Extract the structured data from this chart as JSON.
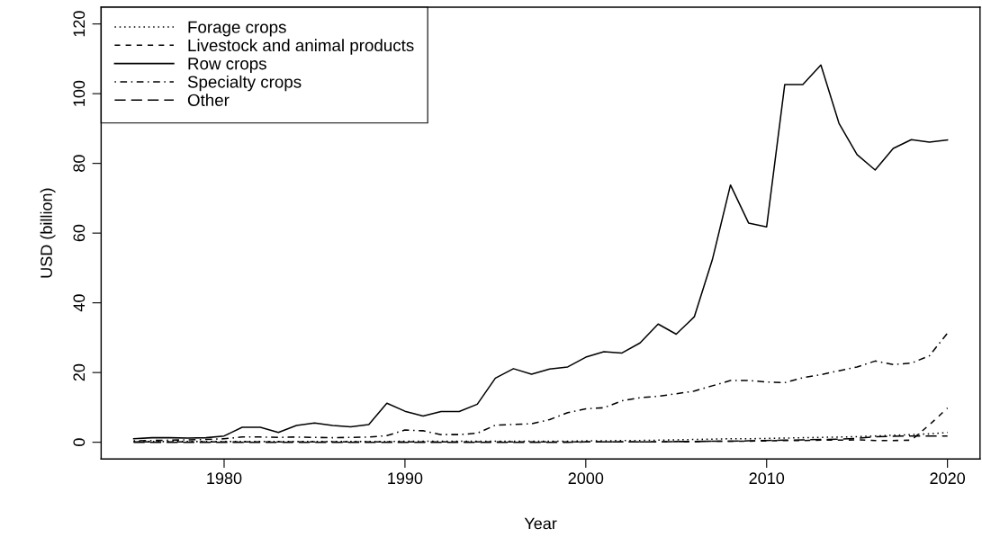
{
  "chart_data": {
    "type": "line",
    "xlabel": "Year",
    "ylabel": "USD (billion)",
    "x": [
      1975,
      1976,
      1977,
      1978,
      1979,
      1980,
      1981,
      1982,
      1983,
      1984,
      1985,
      1986,
      1987,
      1988,
      1989,
      1990,
      1991,
      1992,
      1993,
      1994,
      1995,
      1996,
      1997,
      1998,
      1999,
      2000,
      2001,
      2002,
      2003,
      2004,
      2005,
      2006,
      2007,
      2008,
      2009,
      2010,
      2011,
      2012,
      2013,
      2014,
      2015,
      2016,
      2017,
      2018,
      2019,
      2020
    ],
    "series": [
      {
        "name": "Forage crops",
        "color": "#000000",
        "line_style": "dotted",
        "values": [
          0.2,
          0.2,
          0.2,
          0.2,
          0.2,
          0.2,
          0.2,
          0.2,
          0.2,
          0.2,
          0.2,
          0.2,
          0.2,
          0.2,
          0.2,
          0.3,
          0.3,
          0.3,
          0.3,
          0.3,
          0.3,
          0.3,
          0.3,
          0.3,
          0.3,
          0.4,
          0.4,
          0.5,
          0.5,
          0.6,
          0.7,
          0.8,
          0.9,
          1.0,
          1.0,
          1.1,
          1.2,
          1.3,
          1.4,
          1.5,
          1.6,
          1.8,
          2.0,
          2.2,
          2.4,
          2.8
        ]
      },
      {
        "name": "Livestock and animal products",
        "color": "#000000",
        "line_style": "dashed",
        "values": [
          0.1,
          0.1,
          0.1,
          0.1,
          0.1,
          0.1,
          0.1,
          0.1,
          0.1,
          0.1,
          0.1,
          0.1,
          0.1,
          0.1,
          0.1,
          0.1,
          0.1,
          0.1,
          0.1,
          0.1,
          0.1,
          0.1,
          0.1,
          0.1,
          0.1,
          0.1,
          0.1,
          0.1,
          0.1,
          0.1,
          0.2,
          0.2,
          0.3,
          0.3,
          0.3,
          0.4,
          0.5,
          0.5,
          0.6,
          0.6,
          0.7,
          0.5,
          0.5,
          0.6,
          5.0,
          9.8
        ]
      },
      {
        "name": "Row crops",
        "color": "#000000",
        "line_style": "solid",
        "values": [
          1.0,
          1.3,
          1.3,
          1.2,
          1.3,
          1.8,
          4.3,
          4.3,
          2.8,
          4.8,
          5.5,
          4.8,
          4.4,
          5.1,
          11.2,
          8.9,
          7.5,
          8.8,
          8.8,
          10.9,
          18.4,
          21.1,
          19.5,
          21.0,
          21.6,
          24.4,
          26.0,
          25.6,
          28.5,
          33.9,
          31.0,
          36.0,
          52.4,
          73.8,
          62.9,
          61.8,
          102.6,
          102.6,
          108.2,
          91.5,
          82.5,
          78.1,
          84.3,
          86.8,
          86.1,
          86.7
        ]
      },
      {
        "name": "Specialty crops",
        "color": "#000000",
        "line_style": "dashdot",
        "values": [
          0.4,
          0.5,
          0.6,
          0.7,
          0.8,
          1.0,
          1.5,
          1.5,
          1.4,
          1.5,
          1.4,
          1.3,
          1.4,
          1.5,
          1.9,
          3.5,
          3.3,
          2.2,
          2.2,
          2.6,
          4.9,
          5.1,
          5.3,
          6.5,
          8.5,
          9.6,
          9.9,
          11.9,
          12.8,
          13.2,
          13.9,
          14.7,
          16.2,
          17.7,
          17.7,
          17.3,
          17.1,
          18.5,
          19.4,
          20.5,
          21.6,
          23.3,
          22.3,
          22.7,
          24.8,
          31.3
        ]
      },
      {
        "name": "Other",
        "color": "#000000",
        "line_style": "longdash",
        "values": [
          0.0,
          0.0,
          0.0,
          0.0,
          0.0,
          0.0,
          0.0,
          0.0,
          0.0,
          0.0,
          0.0,
          0.0,
          0.0,
          0.0,
          0.0,
          0.0,
          0.0,
          0.0,
          0.0,
          0.0,
          0.0,
          0.0,
          0.0,
          0.0,
          0.0,
          0.1,
          0.1,
          0.1,
          0.1,
          0.1,
          0.2,
          0.2,
          0.3,
          0.3,
          0.4,
          0.5,
          0.6,
          0.7,
          0.8,
          0.9,
          1.1,
          1.6,
          1.7,
          1.8,
          1.8,
          1.8
        ]
      }
    ],
    "xlim": [
      1973.2,
      2021.8
    ],
    "xticks": [
      1980,
      1990,
      2000,
      2010,
      2020
    ],
    "ylim": [
      -4.8,
      124.8
    ],
    "yticks": [
      0,
      20,
      40,
      60,
      80,
      100,
      120
    ],
    "grid": false,
    "legend": "top left",
    "marker": "none"
  }
}
